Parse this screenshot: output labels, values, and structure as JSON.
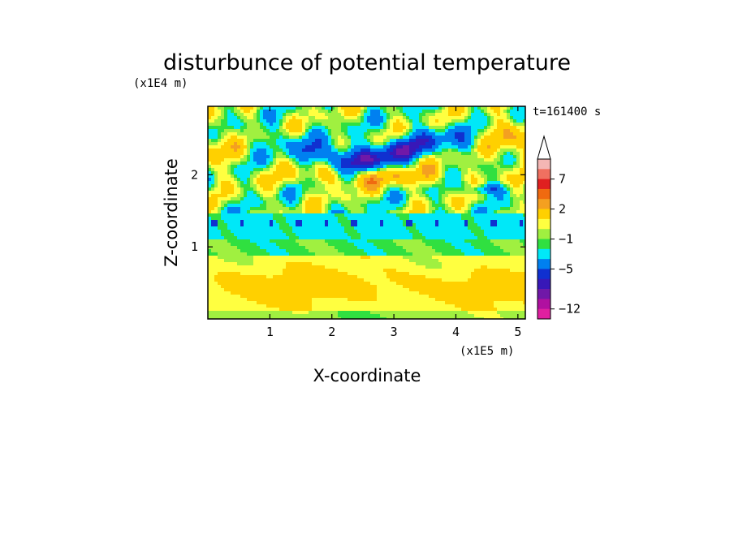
{
  "chart_data": {
    "type": "heatmap",
    "title": "disturbunce of potential temperature",
    "time_label": "t=161400 s",
    "xlabel": "X-coordinate",
    "ylabel": "Z-coordinate",
    "x_scale_label": "(x1E5 m)",
    "y_scale_label": "(x1E4 m)",
    "x_ticks": [
      "1",
      "2",
      "3",
      "4",
      "5"
    ],
    "y_ticks": [
      "1",
      "2"
    ],
    "xlim": [
      0,
      5.12
    ],
    "ylim": [
      0,
      2.95
    ],
    "colorbar": {
      "levels_text": [
        "7",
        "2",
        "−1",
        "−5",
        "−12"
      ],
      "levels": [
        7,
        2,
        -1,
        -5,
        -12
      ],
      "colors": [
        "#f4b6b4",
        "#f07060",
        "#e02020",
        "#f06a10",
        "#f4a020",
        "#ffd000",
        "#ffff40",
        "#a0f040",
        "#30e040",
        "#00e8f8",
        "#0080f0",
        "#1030d0",
        "#3818b8",
        "#7018a8",
        "#b010a0",
        "#e020a0"
      ],
      "extend_max": true
    },
    "field_description_note": null
  },
  "colors": {
    "background": "#ffffff",
    "axis": "#000000"
  }
}
